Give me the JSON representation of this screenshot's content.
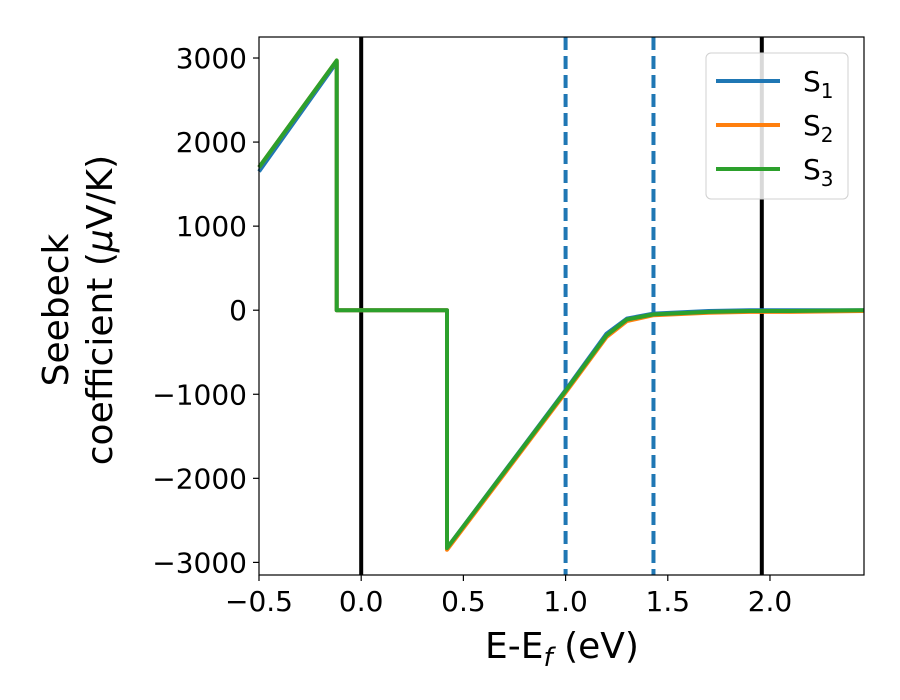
{
  "chart_data": {
    "type": "line",
    "xlabel": "E-E",
    "xlabel_sub": "f",
    "xlabel_unit": " (eV)",
    "ylabel_line1": "Seebeck",
    "ylabel_line2": "coefficient  (",
    "ylabel_mu": "μ",
    "ylabel_unit": "V/K)",
    "xlim": [
      -0.5,
      2.46
    ],
    "ylim": [
      -3150,
      3250
    ],
    "x_ticks": [
      -0.5,
      0.0,
      0.5,
      1.0,
      1.5,
      2.0
    ],
    "x_tick_labels": [
      "−0.5",
      "0.0",
      "0.5",
      "1.0",
      "1.5",
      "2.0"
    ],
    "y_ticks": [
      3000,
      2000,
      1000,
      0,
      -1000,
      -2000,
      -3000
    ],
    "y_tick_labels": [
      "3000",
      "2000",
      "1000",
      "0",
      "−1000",
      "−2000",
      "−3000"
    ],
    "grid": false,
    "legend_placement": "top-right",
    "vlines": [
      {
        "x": 0.0,
        "color": "#000000",
        "style": "solid"
      },
      {
        "x": 1.0,
        "color": "#1f77b4",
        "style": "dashed"
      },
      {
        "x": 1.43,
        "color": "#1f77b4",
        "style": "dashed"
      },
      {
        "x": 1.96,
        "color": "#000000",
        "style": "solid"
      }
    ],
    "series": [
      {
        "name": "S",
        "sub": "1",
        "color": "#1f77b4",
        "x": [
          -0.5,
          -0.12,
          -0.12,
          0.42,
          0.42,
          1.0,
          1.2,
          1.3,
          1.43,
          1.7,
          1.9,
          2.1,
          2.46
        ],
        "y": [
          1650,
          2950,
          0,
          0,
          -2830,
          -950,
          -280,
          -100,
          -40,
          -10,
          0,
          0,
          0
        ]
      },
      {
        "name": "S",
        "sub": "2",
        "color": "#ff7f0e",
        "x": [
          -0.5,
          -0.12,
          -0.12,
          0.42,
          0.42,
          1.0,
          1.2,
          1.3,
          1.43,
          1.7,
          1.9,
          2.1,
          2.46
        ],
        "y": [
          1700,
          2970,
          0,
          0,
          -2850,
          -980,
          -320,
          -130,
          -60,
          -30,
          -20,
          -20,
          -10
        ]
      },
      {
        "name": "S",
        "sub": "3",
        "color": "#2ca02c",
        "x": [
          -0.5,
          -0.12,
          -0.12,
          0.42,
          0.42,
          1.0,
          1.2,
          1.3,
          1.43,
          1.7,
          1.9,
          2.1,
          2.46
        ],
        "y": [
          1700,
          2970,
          0,
          0,
          -2830,
          -960,
          -300,
          -110,
          -50,
          -20,
          -10,
          -10,
          0
        ]
      }
    ]
  }
}
